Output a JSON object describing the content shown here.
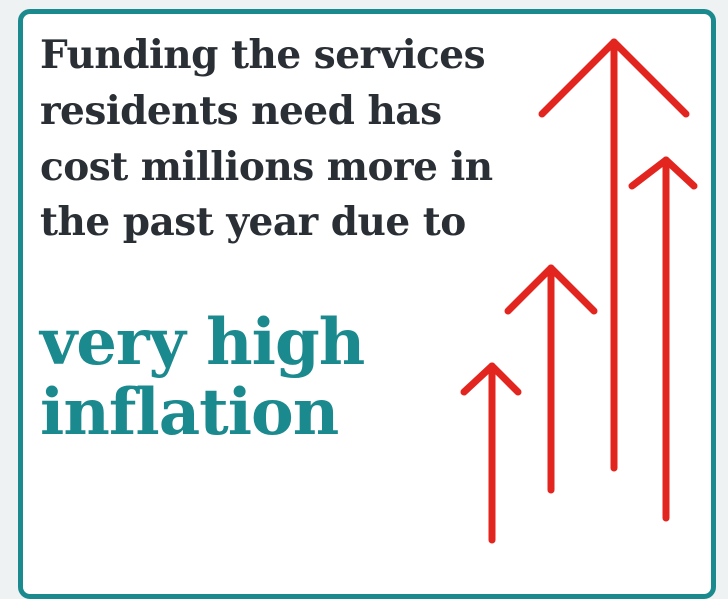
{
  "card": {
    "headline_lines": [
      "Funding the services",
      "residents need has",
      "cost millions more in",
      "the past year due to"
    ],
    "highlight_lines": [
      "very high",
      "inflation"
    ]
  },
  "colors": {
    "border": "#1b8a8f",
    "headline_text": "#2a2f35",
    "highlight_text": "#1b8a8f",
    "arrow": "#e3251f",
    "background": "#eef2f3"
  },
  "icons": {
    "arrows": "up-arrow-icon"
  }
}
